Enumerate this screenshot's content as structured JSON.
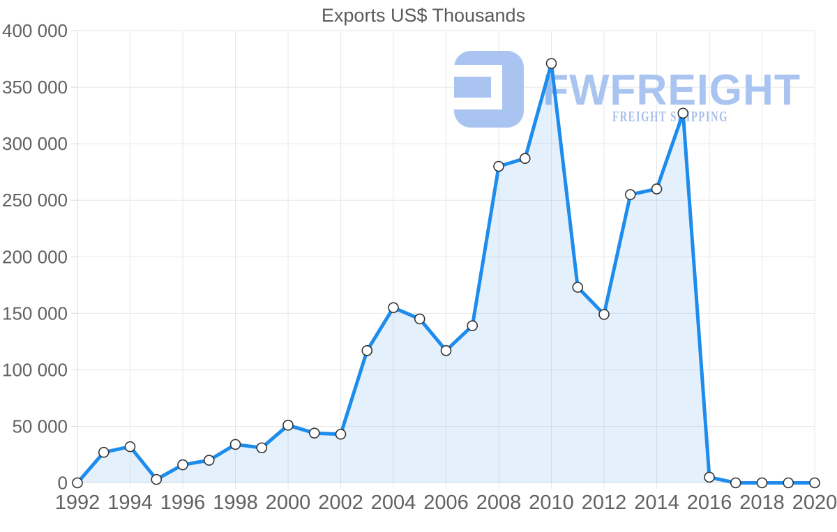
{
  "chart_data": {
    "type": "area",
    "title": "Exports US$ Thousands",
    "xlabel": "",
    "ylabel": "",
    "x": [
      1992,
      1993,
      1994,
      1995,
      1996,
      1997,
      1998,
      1999,
      2000,
      2001,
      2002,
      2003,
      2004,
      2005,
      2006,
      2007,
      2008,
      2009,
      2010,
      2011,
      2012,
      2013,
      2014,
      2015,
      2016,
      2017,
      2018,
      2019,
      2020
    ],
    "values": [
      0,
      27000,
      32000,
      3000,
      16000,
      20000,
      34000,
      31000,
      51000,
      44000,
      43000,
      117000,
      155000,
      145000,
      117000,
      139000,
      280000,
      287000,
      371000,
      173000,
      149000,
      255000,
      260000,
      327000,
      5000,
      0,
      0,
      0,
      0
    ],
    "series_name": "Exports",
    "ylim": [
      0,
      400000
    ],
    "ytick_values": [
      0,
      50000,
      100000,
      150000,
      200000,
      250000,
      300000,
      350000,
      400000
    ],
    "ytick_labels": [
      "0",
      "50 000",
      "100 000",
      "150 000",
      "200 000",
      "250 000",
      "300 000",
      "350 000",
      "400 000"
    ],
    "xtick_values": [
      1992,
      1994,
      1996,
      1998,
      2000,
      2002,
      2004,
      2006,
      2008,
      2010,
      2012,
      2014,
      2016,
      2018,
      2020
    ],
    "xtick_labels": [
      "1992",
      "1994",
      "1996",
      "1998",
      "2000",
      "2002",
      "2004",
      "2006",
      "2008",
      "2010",
      "2012",
      "2014",
      "2016",
      "2018",
      "2020"
    ],
    "grid": true,
    "legend": false,
    "marker": "circle"
  },
  "watermark": {
    "brand": "FWFREIGHT",
    "tagline": "FREIGHT SHIPPING"
  },
  "colors": {
    "line": "#1e8cec",
    "area_fill": "rgba(30,140,235,0.12)",
    "marker_fill": "#ffffff",
    "marker_stroke": "#333333",
    "grid": "#e7e7e7",
    "axis": "#d9d9d9",
    "text": "#616161",
    "title_text": "#5a5a5a",
    "watermark_blue": "#a9c4f0",
    "tagline_blue": "#a8bfe9"
  }
}
